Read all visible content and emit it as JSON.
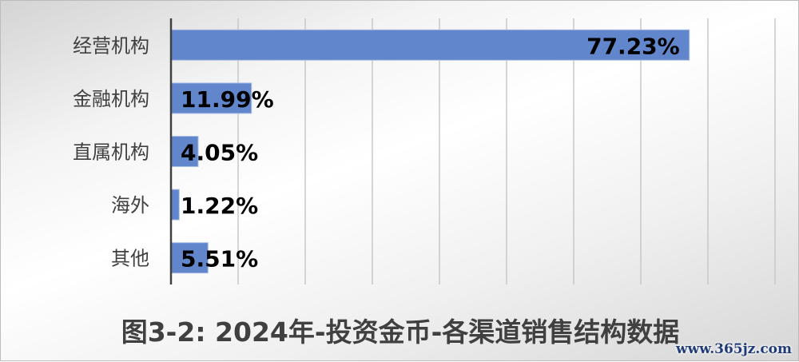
{
  "chart_data": {
    "type": "bar",
    "orientation": "horizontal",
    "title": "图3-2: 2024年-投资金币-各渠道销售结构数据",
    "categories": [
      "经营机构",
      "金融机构",
      "直属机构",
      "海外",
      "其他"
    ],
    "values": [
      77.23,
      11.99,
      4.05,
      1.22,
      5.51
    ],
    "data_labels": [
      "77.23%",
      "11.99%",
      "4.05%",
      "1.22%",
      "5.51%"
    ],
    "xlim": [
      0,
      90
    ],
    "grid": "vertical",
    "bar_color": "#6186cc",
    "legend": "none"
  },
  "watermark": "www.365jz.com"
}
